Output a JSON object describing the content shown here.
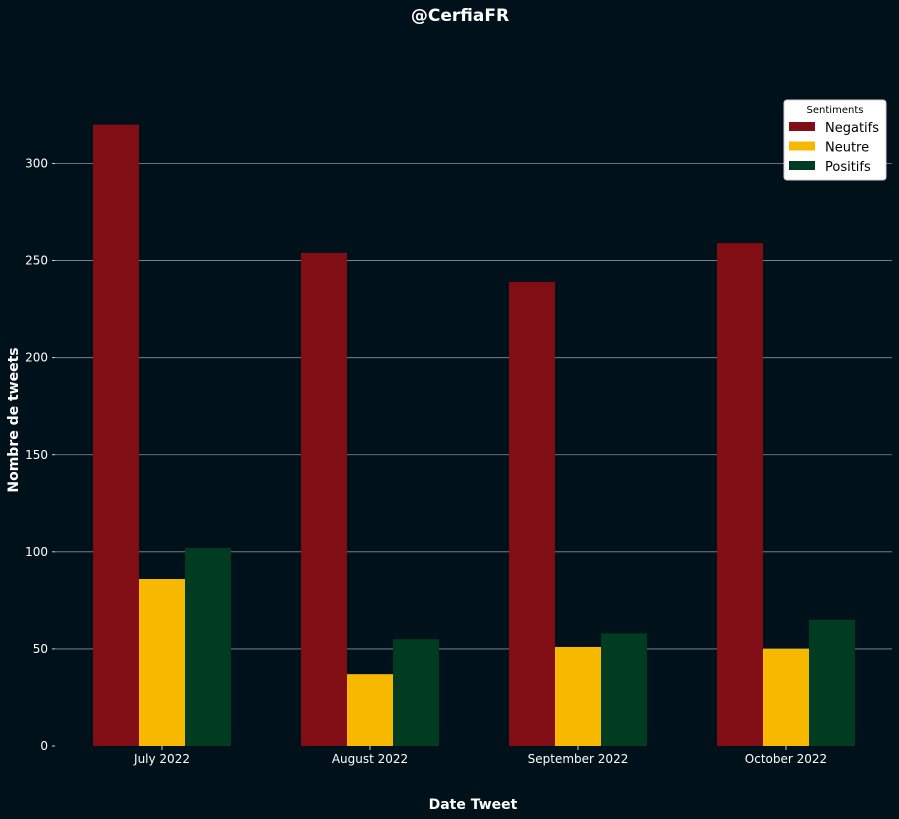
{
  "chart_data": {
    "type": "bar",
    "title": "@CerfiaFR",
    "xlabel": "Date Tweet",
    "ylabel": "Nombre de tweets",
    "categories": [
      "July 2022",
      "August 2022",
      "September 2022",
      "October 2022"
    ],
    "series": [
      {
        "name": "Negatifs",
        "color": "#800e14",
        "values": [
          320,
          254,
          239,
          259
        ]
      },
      {
        "name": "Neutre",
        "color": "#f7b800",
        "values": [
          86,
          37,
          51,
          50
        ]
      },
      {
        "name": "Positifs",
        "color": "#003b22",
        "values": [
          102,
          55,
          58,
          65
        ]
      }
    ],
    "yticks": [
      "0",
      "50",
      "100",
      "150",
      "200",
      "250",
      "300"
    ],
    "ylim": [
      0,
      350
    ],
    "grid": "horizontal",
    "legend": {
      "title": "Sentiments",
      "position": "top-right"
    }
  }
}
